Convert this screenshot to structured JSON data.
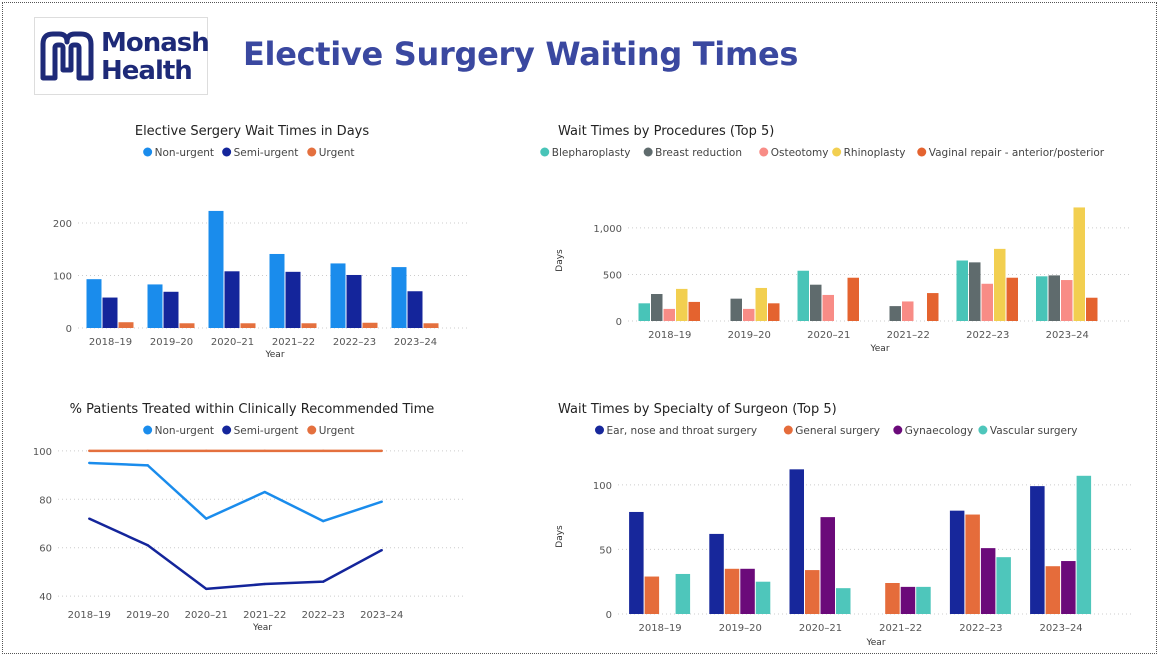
{
  "header": {
    "logo_line1": "Monash",
    "logo_line2": "Health",
    "title": "Elective Surgery Waiting Times"
  },
  "colors": {
    "non_urgent": "#1a8cec",
    "semi_urgent": "#14259b",
    "urgent": "#e4703e",
    "blepharoplasty": "#48c4b8",
    "breast_reduction": "#5f6b6d",
    "osteotomy": "#f88c86",
    "rhinoplasty": "#f2cf50",
    "vaginal_repair": "#e4632f",
    "ent": "#17279b",
    "general": "#e56c3b",
    "gynaecology": "#6b0a7a",
    "vascular": "#4ec6bb"
  },
  "chart_data": [
    {
      "id": "wait_days",
      "type": "bar",
      "title": "Elective Sergery Wait Times in Days",
      "xlabel": "Year",
      "ylabel": "",
      "categories": [
        "2018–19",
        "2019–20",
        "2020–21",
        "2021–22",
        "2022–23",
        "2023–24"
      ],
      "series": [
        {
          "name": "Non-urgent",
          "values": [
            93,
            83,
            223,
            141,
            123,
            116
          ]
        },
        {
          "name": "Semi-urgent",
          "values": [
            58,
            69,
            108,
            107,
            101,
            70
          ]
        },
        {
          "name": "Urgent",
          "values": [
            11,
            9,
            9,
            9,
            10,
            9
          ]
        }
      ],
      "ylim": [
        0,
        240
      ],
      "yticks": [
        0,
        100,
        200
      ],
      "ytick_labels": [
        "0",
        "100",
        "200"
      ],
      "grid": true,
      "legend": "top-center"
    },
    {
      "id": "procedures",
      "type": "bar",
      "title": "Wait Times by Procedures (Top 5)",
      "xlabel": "Year",
      "ylabel": "Days",
      "categories": [
        "2018–19",
        "2019–20",
        "2020–21",
        "2021–22",
        "2022–23",
        "2023–24"
      ],
      "series": [
        {
          "name": "Blepharoplasty",
          "values": [
            190,
            null,
            540,
            null,
            650,
            480
          ]
        },
        {
          "name": "Breast reduction",
          "values": [
            290,
            240,
            390,
            160,
            630,
            490
          ]
        },
        {
          "name": "Osteotomy",
          "values": [
            130,
            130,
            280,
            210,
            400,
            440
          ]
        },
        {
          "name": "Rhinoplasty",
          "values": [
            345,
            355,
            null,
            null,
            775,
            1220
          ]
        },
        {
          "name": "Vaginal repair - anterior/posterior",
          "values": [
            205,
            190,
            465,
            300,
            465,
            250
          ]
        }
      ],
      "ylim": [
        0,
        1300
      ],
      "yticks": [
        0,
        500,
        1000
      ],
      "ytick_labels": [
        "0",
        "500",
        "1,000"
      ],
      "grid": true,
      "legend": "top-center"
    },
    {
      "id": "pct_treated",
      "type": "line",
      "title": "% Patients Treated within Clinically Recommended Time",
      "xlabel": "Year",
      "ylabel": "",
      "categories": [
        "2018–19",
        "2019–20",
        "2020–21",
        "2021–22",
        "2022–23",
        "2023–24"
      ],
      "series": [
        {
          "name": "Non-urgent",
          "values": [
            95,
            94,
            72,
            83,
            71,
            79
          ]
        },
        {
          "name": "Semi-urgent",
          "values": [
            72,
            61,
            43,
            45,
            46,
            59
          ]
        },
        {
          "name": "Urgent",
          "values": [
            100,
            100,
            100,
            100,
            100,
            100
          ]
        }
      ],
      "ylim": [
        38,
        102
      ],
      "yticks": [
        40,
        60,
        80,
        100
      ],
      "ytick_labels": [
        "40",
        "60",
        "80",
        "100"
      ],
      "grid": true,
      "legend": "top-center"
    },
    {
      "id": "specialty",
      "type": "bar",
      "title": "Wait Times by Specialty of Surgeon (Top 5)",
      "xlabel": "Year",
      "ylabel": "Days",
      "categories": [
        "2018–19",
        "2019–20",
        "2020–21",
        "2021–22",
        "2022–23",
        "2023–24"
      ],
      "series": [
        {
          "name": "Ear, nose and throat surgery",
          "values": [
            79,
            62,
            112,
            null,
            80,
            99
          ]
        },
        {
          "name": "General surgery",
          "values": [
            29,
            35,
            34,
            24,
            77,
            37
          ]
        },
        {
          "name": "Gynaecology",
          "values": [
            null,
            35,
            75,
            21,
            51,
            41
          ]
        },
        {
          "name": "Vascular surgery",
          "values": [
            31,
            25,
            20,
            21,
            44,
            107
          ]
        }
      ],
      "ylim": [
        0,
        120
      ],
      "yticks": [
        0,
        50,
        100
      ],
      "ytick_labels": [
        "0",
        "50",
        "100"
      ],
      "grid": true,
      "legend": "top-center"
    }
  ]
}
